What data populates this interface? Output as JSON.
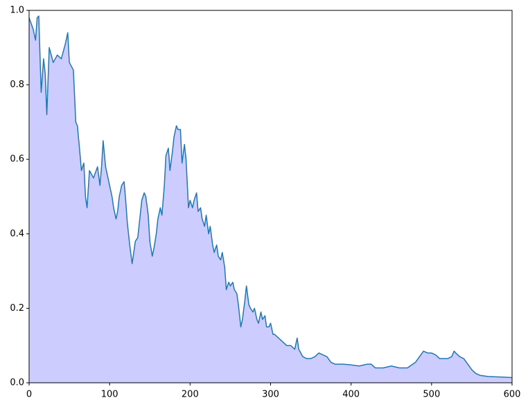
{
  "chart_data": {
    "type": "area",
    "x": [
      0,
      5,
      8,
      10,
      12,
      15,
      18,
      20,
      22,
      25,
      30,
      35,
      40,
      45,
      48,
      50,
      55,
      58,
      60,
      63,
      65,
      68,
      70,
      72,
      75,
      80,
      85,
      88,
      90,
      92,
      95,
      100,
      103,
      105,
      108,
      110,
      112,
      115,
      118,
      120,
      122,
      125,
      128,
      130,
      132,
      135,
      138,
      140,
      143,
      145,
      148,
      150,
      153,
      155,
      158,
      160,
      163,
      165,
      168,
      170,
      173,
      175,
      178,
      180,
      183,
      185,
      188,
      190,
      193,
      195,
      198,
      200,
      203,
      205,
      208,
      210,
      213,
      215,
      218,
      220,
      223,
      225,
      228,
      230,
      233,
      235,
      238,
      240,
      243,
      245,
      248,
      250,
      253,
      255,
      258,
      260,
      263,
      265,
      268,
      270,
      273,
      275,
      278,
      280,
      283,
      285,
      288,
      290,
      293,
      295,
      298,
      300,
      303,
      305,
      310,
      315,
      320,
      325,
      330,
      333,
      335,
      340,
      345,
      350,
      355,
      360,
      365,
      370,
      375,
      380,
      390,
      400,
      410,
      420,
      425,
      430,
      440,
      450,
      460,
      470,
      480,
      485,
      490,
      495,
      500,
      505,
      510,
      520,
      525,
      528,
      530,
      535,
      540,
      545,
      550,
      555,
      560,
      570,
      580,
      590,
      600
    ],
    "series": [
      {
        "color": "#1f77b4",
        "fill": "#ccccff",
        "values": [
          0.98,
          0.95,
          0.92,
          0.98,
          0.985,
          0.78,
          0.87,
          0.83,
          0.72,
          0.9,
          0.86,
          0.88,
          0.87,
          0.91,
          0.94,
          0.86,
          0.84,
          0.7,
          0.69,
          0.62,
          0.57,
          0.59,
          0.5,
          0.47,
          0.57,
          0.55,
          0.58,
          0.53,
          0.58,
          0.65,
          0.58,
          0.53,
          0.5,
          0.47,
          0.44,
          0.46,
          0.5,
          0.53,
          0.54,
          0.49,
          0.43,
          0.37,
          0.32,
          0.35,
          0.38,
          0.39,
          0.45,
          0.49,
          0.51,
          0.5,
          0.45,
          0.38,
          0.34,
          0.36,
          0.4,
          0.44,
          0.47,
          0.45,
          0.53,
          0.61,
          0.63,
          0.57,
          0.62,
          0.66,
          0.69,
          0.68,
          0.68,
          0.59,
          0.64,
          0.6,
          0.47,
          0.49,
          0.47,
          0.49,
          0.51,
          0.46,
          0.47,
          0.44,
          0.42,
          0.45,
          0.4,
          0.42,
          0.37,
          0.35,
          0.37,
          0.34,
          0.33,
          0.35,
          0.31,
          0.25,
          0.27,
          0.26,
          0.27,
          0.25,
          0.24,
          0.21,
          0.15,
          0.17,
          0.22,
          0.26,
          0.21,
          0.2,
          0.19,
          0.2,
          0.17,
          0.16,
          0.19,
          0.17,
          0.18,
          0.15,
          0.15,
          0.16,
          0.13,
          0.13,
          0.12,
          0.11,
          0.1,
          0.1,
          0.09,
          0.12,
          0.09,
          0.07,
          0.065,
          0.065,
          0.07,
          0.08,
          0.075,
          0.07,
          0.055,
          0.05,
          0.05,
          0.048,
          0.045,
          0.05,
          0.05,
          0.04,
          0.04,
          0.045,
          0.04,
          0.04,
          0.055,
          0.07,
          0.085,
          0.08,
          0.08,
          0.075,
          0.065,
          0.065,
          0.07,
          0.085,
          0.08,
          0.07,
          0.065,
          0.05,
          0.035,
          0.025,
          0.02,
          0.017,
          0.016,
          0.015,
          0.014
        ]
      }
    ],
    "xlim": [
      0,
      600
    ],
    "xticks": [
      0,
      100,
      200,
      300,
      400,
      500,
      600
    ],
    "ylim": [
      0,
      1
    ],
    "yticks": [
      {
        "value": 0,
        "label": "0.0"
      },
      0.2,
      0.4,
      0.6,
      0.8,
      {
        "value": 1,
        "label": "1.0"
      }
    ]
  }
}
